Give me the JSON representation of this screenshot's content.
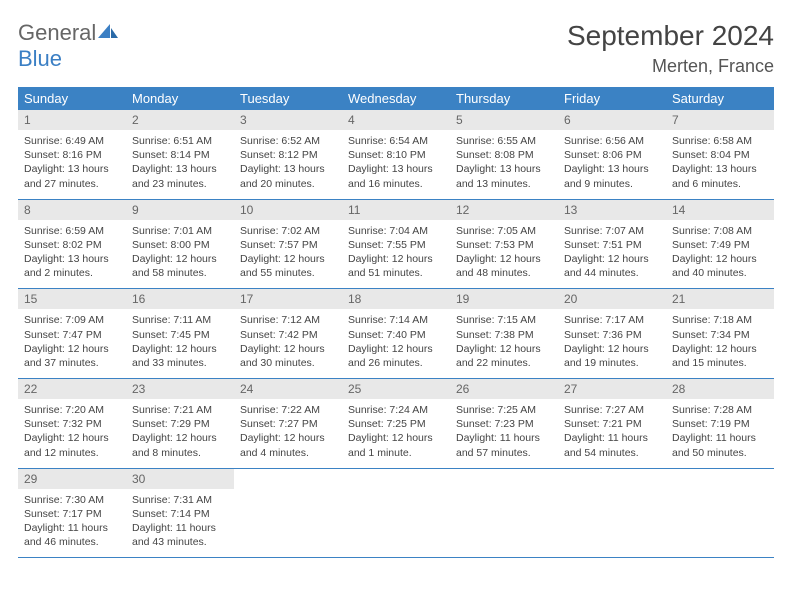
{
  "brand": {
    "part1": "General",
    "part2": "Blue"
  },
  "title": "September 2024",
  "location": "Merten, France",
  "colors": {
    "accent": "#3b82c4",
    "headerbg": "#e8e8e8",
    "text": "#444"
  },
  "day_headers": [
    "Sunday",
    "Monday",
    "Tuesday",
    "Wednesday",
    "Thursday",
    "Friday",
    "Saturday"
  ],
  "weeks": [
    [
      {
        "n": "1",
        "sr": "Sunrise: 6:49 AM",
        "ss": "Sunset: 8:16 PM",
        "d1": "Daylight: 13 hours",
        "d2": "and 27 minutes."
      },
      {
        "n": "2",
        "sr": "Sunrise: 6:51 AM",
        "ss": "Sunset: 8:14 PM",
        "d1": "Daylight: 13 hours",
        "d2": "and 23 minutes."
      },
      {
        "n": "3",
        "sr": "Sunrise: 6:52 AM",
        "ss": "Sunset: 8:12 PM",
        "d1": "Daylight: 13 hours",
        "d2": "and 20 minutes."
      },
      {
        "n": "4",
        "sr": "Sunrise: 6:54 AM",
        "ss": "Sunset: 8:10 PM",
        "d1": "Daylight: 13 hours",
        "d2": "and 16 minutes."
      },
      {
        "n": "5",
        "sr": "Sunrise: 6:55 AM",
        "ss": "Sunset: 8:08 PM",
        "d1": "Daylight: 13 hours",
        "d2": "and 13 minutes."
      },
      {
        "n": "6",
        "sr": "Sunrise: 6:56 AM",
        "ss": "Sunset: 8:06 PM",
        "d1": "Daylight: 13 hours",
        "d2": "and 9 minutes."
      },
      {
        "n": "7",
        "sr": "Sunrise: 6:58 AM",
        "ss": "Sunset: 8:04 PM",
        "d1": "Daylight: 13 hours",
        "d2": "and 6 minutes."
      }
    ],
    [
      {
        "n": "8",
        "sr": "Sunrise: 6:59 AM",
        "ss": "Sunset: 8:02 PM",
        "d1": "Daylight: 13 hours",
        "d2": "and 2 minutes."
      },
      {
        "n": "9",
        "sr": "Sunrise: 7:01 AM",
        "ss": "Sunset: 8:00 PM",
        "d1": "Daylight: 12 hours",
        "d2": "and 58 minutes."
      },
      {
        "n": "10",
        "sr": "Sunrise: 7:02 AM",
        "ss": "Sunset: 7:57 PM",
        "d1": "Daylight: 12 hours",
        "d2": "and 55 minutes."
      },
      {
        "n": "11",
        "sr": "Sunrise: 7:04 AM",
        "ss": "Sunset: 7:55 PM",
        "d1": "Daylight: 12 hours",
        "d2": "and 51 minutes."
      },
      {
        "n": "12",
        "sr": "Sunrise: 7:05 AM",
        "ss": "Sunset: 7:53 PM",
        "d1": "Daylight: 12 hours",
        "d2": "and 48 minutes."
      },
      {
        "n": "13",
        "sr": "Sunrise: 7:07 AM",
        "ss": "Sunset: 7:51 PM",
        "d1": "Daylight: 12 hours",
        "d2": "and 44 minutes."
      },
      {
        "n": "14",
        "sr": "Sunrise: 7:08 AM",
        "ss": "Sunset: 7:49 PM",
        "d1": "Daylight: 12 hours",
        "d2": "and 40 minutes."
      }
    ],
    [
      {
        "n": "15",
        "sr": "Sunrise: 7:09 AM",
        "ss": "Sunset: 7:47 PM",
        "d1": "Daylight: 12 hours",
        "d2": "and 37 minutes."
      },
      {
        "n": "16",
        "sr": "Sunrise: 7:11 AM",
        "ss": "Sunset: 7:45 PM",
        "d1": "Daylight: 12 hours",
        "d2": "and 33 minutes."
      },
      {
        "n": "17",
        "sr": "Sunrise: 7:12 AM",
        "ss": "Sunset: 7:42 PM",
        "d1": "Daylight: 12 hours",
        "d2": "and 30 minutes."
      },
      {
        "n": "18",
        "sr": "Sunrise: 7:14 AM",
        "ss": "Sunset: 7:40 PM",
        "d1": "Daylight: 12 hours",
        "d2": "and 26 minutes."
      },
      {
        "n": "19",
        "sr": "Sunrise: 7:15 AM",
        "ss": "Sunset: 7:38 PM",
        "d1": "Daylight: 12 hours",
        "d2": "and 22 minutes."
      },
      {
        "n": "20",
        "sr": "Sunrise: 7:17 AM",
        "ss": "Sunset: 7:36 PM",
        "d1": "Daylight: 12 hours",
        "d2": "and 19 minutes."
      },
      {
        "n": "21",
        "sr": "Sunrise: 7:18 AM",
        "ss": "Sunset: 7:34 PM",
        "d1": "Daylight: 12 hours",
        "d2": "and 15 minutes."
      }
    ],
    [
      {
        "n": "22",
        "sr": "Sunrise: 7:20 AM",
        "ss": "Sunset: 7:32 PM",
        "d1": "Daylight: 12 hours",
        "d2": "and 12 minutes."
      },
      {
        "n": "23",
        "sr": "Sunrise: 7:21 AM",
        "ss": "Sunset: 7:29 PM",
        "d1": "Daylight: 12 hours",
        "d2": "and 8 minutes."
      },
      {
        "n": "24",
        "sr": "Sunrise: 7:22 AM",
        "ss": "Sunset: 7:27 PM",
        "d1": "Daylight: 12 hours",
        "d2": "and 4 minutes."
      },
      {
        "n": "25",
        "sr": "Sunrise: 7:24 AM",
        "ss": "Sunset: 7:25 PM",
        "d1": "Daylight: 12 hours",
        "d2": "and 1 minute."
      },
      {
        "n": "26",
        "sr": "Sunrise: 7:25 AM",
        "ss": "Sunset: 7:23 PM",
        "d1": "Daylight: 11 hours",
        "d2": "and 57 minutes."
      },
      {
        "n": "27",
        "sr": "Sunrise: 7:27 AM",
        "ss": "Sunset: 7:21 PM",
        "d1": "Daylight: 11 hours",
        "d2": "and 54 minutes."
      },
      {
        "n": "28",
        "sr": "Sunrise: 7:28 AM",
        "ss": "Sunset: 7:19 PM",
        "d1": "Daylight: 11 hours",
        "d2": "and 50 minutes."
      }
    ],
    [
      {
        "n": "29",
        "sr": "Sunrise: 7:30 AM",
        "ss": "Sunset: 7:17 PM",
        "d1": "Daylight: 11 hours",
        "d2": "and 46 minutes."
      },
      {
        "n": "30",
        "sr": "Sunrise: 7:31 AM",
        "ss": "Sunset: 7:14 PM",
        "d1": "Daylight: 11 hours",
        "d2": "and 43 minutes."
      },
      null,
      null,
      null,
      null,
      null
    ]
  ]
}
